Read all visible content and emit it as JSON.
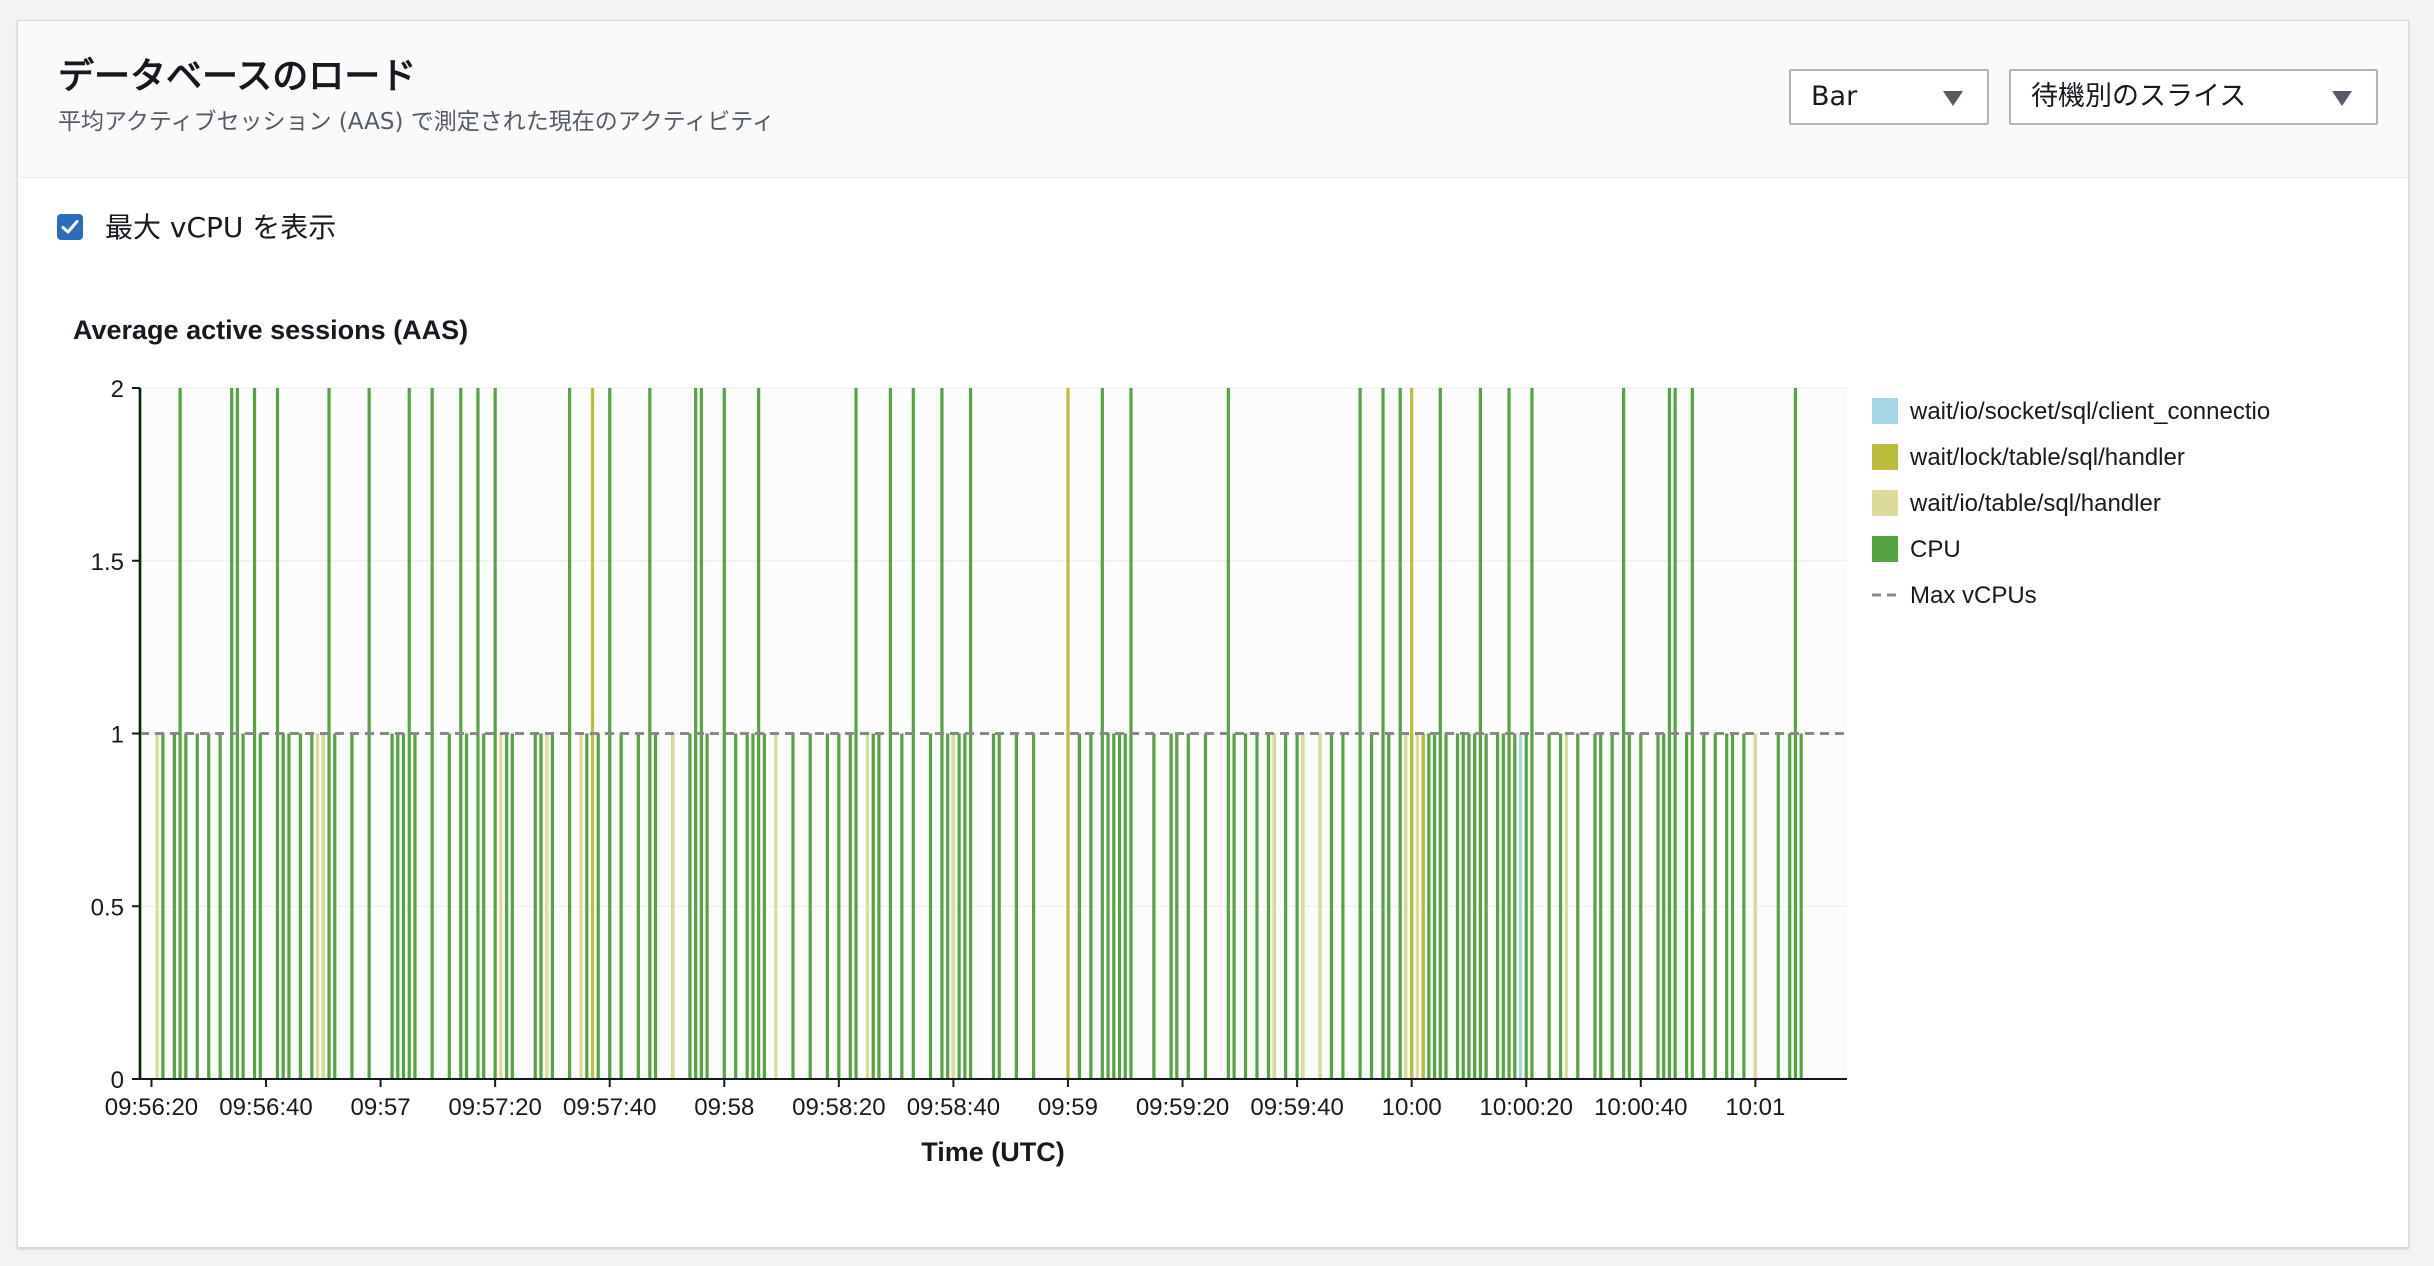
{
  "header": {
    "title": "データベースのロード",
    "subtitle": "平均アクティブセッション (AAS) で測定された現在のアクティビティ"
  },
  "controls": {
    "chart_type": {
      "value": "Bar"
    },
    "slice_by": {
      "value": "待機別のスライス"
    }
  },
  "show_max_vcpu": {
    "label": "最大 vCPU を表示",
    "checked": true
  },
  "colors": {
    "wait_io_socket": "#a6d7e4",
    "wait_lock_table": "#bcbd3c",
    "wait_io_table": "#dcdc98",
    "cpu": "#55a343",
    "max_vcpu": "#888888"
  },
  "chart_data": {
    "type": "bar",
    "title": "Average active sessions (AAS)",
    "xlabel": "Time (UTC)",
    "ylabel": "",
    "ylim": [
      0,
      2
    ],
    "yticks": [
      "0",
      "0.5",
      "1",
      "1.5",
      "2"
    ],
    "xlim": [
      "09:56:18",
      "10:01:16"
    ],
    "xticks": [
      "09:56:20",
      "09:56:40",
      "09:57",
      "09:57:20",
      "09:57:40",
      "09:58",
      "09:58:20",
      "09:58:40",
      "09:59",
      "09:59:20",
      "09:59:40",
      "10:00",
      "10:00:20",
      "10:00:40",
      "10:01"
    ],
    "grid": true,
    "legend_position": "right",
    "legend": [
      {
        "name": "wait/io/socket/sql/client_connectio",
        "key": "wait_io_socket"
      },
      {
        "name": "wait/lock/table/sql/handler",
        "key": "wait_lock_table"
      },
      {
        "name": "wait/io/table/sql/handler",
        "key": "wait_io_table"
      },
      {
        "name": "CPU",
        "key": "cpu"
      },
      {
        "name": "Max vCPUs",
        "key": "max_vcpu",
        "style": "dashed"
      }
    ],
    "max_vcpus": 1,
    "series": [
      {
        "name": "CPU",
        "key": "cpu",
        "points": [
          [
            "09:56:18",
            2
          ],
          [
            "09:56:22",
            1
          ],
          [
            "09:56:24",
            1
          ],
          [
            "09:56:25",
            2
          ],
          [
            "09:56:26",
            1
          ],
          [
            "09:56:28",
            1
          ],
          [
            "09:56:30",
            1
          ],
          [
            "09:56:32",
            1
          ],
          [
            "09:56:34",
            2
          ],
          [
            "09:56:35",
            2
          ],
          [
            "09:56:36",
            1
          ],
          [
            "09:56:38",
            2
          ],
          [
            "09:56:39",
            1
          ],
          [
            "09:56:42",
            2
          ],
          [
            "09:56:43",
            1
          ],
          [
            "09:56:44",
            1
          ],
          [
            "09:56:46",
            1
          ],
          [
            "09:56:48",
            1
          ],
          [
            "09:56:50",
            1
          ],
          [
            "09:56:51",
            2
          ],
          [
            "09:56:52",
            1
          ],
          [
            "09:56:55",
            1
          ],
          [
            "09:56:58",
            2
          ],
          [
            "09:57:02",
            1
          ],
          [
            "09:57:03",
            1
          ],
          [
            "09:57:04",
            1
          ],
          [
            "09:57:05",
            2
          ],
          [
            "09:57:06",
            1
          ],
          [
            "09:57:09",
            2
          ],
          [
            "09:57:12",
            1
          ],
          [
            "09:57:14",
            2
          ],
          [
            "09:57:15",
            1
          ],
          [
            "09:57:17",
            2
          ],
          [
            "09:57:18",
            1
          ],
          [
            "09:57:20",
            2
          ],
          [
            "09:57:22",
            1
          ],
          [
            "09:57:23",
            1
          ],
          [
            "09:57:27",
            1
          ],
          [
            "09:57:28",
            1
          ],
          [
            "09:57:30",
            1
          ],
          [
            "09:57:33",
            2
          ],
          [
            "09:57:36",
            1
          ],
          [
            "09:57:38",
            1
          ],
          [
            "09:57:40",
            2
          ],
          [
            "09:57:42",
            1
          ],
          [
            "09:57:45",
            1
          ],
          [
            "09:57:47",
            2
          ],
          [
            "09:57:48",
            1
          ],
          [
            "09:57:51",
            1
          ],
          [
            "09:57:54",
            1
          ],
          [
            "09:57:55",
            2
          ],
          [
            "09:57:56",
            2
          ],
          [
            "09:57:57",
            1
          ],
          [
            "09:58:00",
            2
          ],
          [
            "09:58:02",
            1
          ],
          [
            "09:58:04",
            1
          ],
          [
            "09:58:05",
            1
          ],
          [
            "09:58:06",
            2
          ],
          [
            "09:58:07",
            1
          ],
          [
            "09:58:12",
            1
          ],
          [
            "09:58:15",
            1
          ],
          [
            "09:58:18",
            1
          ],
          [
            "09:58:20",
            1
          ],
          [
            "09:58:22",
            1
          ],
          [
            "09:58:23",
            2
          ],
          [
            "09:58:26",
            1
          ],
          [
            "09:58:27",
            1
          ],
          [
            "09:58:29",
            2
          ],
          [
            "09:58:31",
            1
          ],
          [
            "09:58:33",
            2
          ],
          [
            "09:58:36",
            1
          ],
          [
            "09:58:38",
            2
          ],
          [
            "09:58:39",
            1
          ],
          [
            "09:58:40",
            1
          ],
          [
            "09:58:41",
            1
          ],
          [
            "09:58:42",
            1
          ],
          [
            "09:58:43",
            2
          ],
          [
            "09:58:47",
            1
          ],
          [
            "09:58:48",
            1
          ],
          [
            "09:58:51",
            1
          ],
          [
            "09:58:54",
            1
          ],
          [
            "09:59:02",
            1
          ],
          [
            "09:59:04",
            1
          ],
          [
            "09:59:06",
            2
          ],
          [
            "09:59:07",
            1
          ],
          [
            "09:59:08",
            1
          ],
          [
            "09:59:09",
            1
          ],
          [
            "09:59:10",
            1
          ],
          [
            "09:59:11",
            2
          ],
          [
            "09:59:15",
            1
          ],
          [
            "09:59:18",
            1
          ],
          [
            "09:59:19",
            1
          ],
          [
            "09:59:21",
            1
          ],
          [
            "09:59:24",
            1
          ],
          [
            "09:59:28",
            2
          ],
          [
            "09:59:29",
            1
          ],
          [
            "09:59:31",
            1
          ],
          [
            "09:59:33",
            1
          ],
          [
            "09:59:35",
            1
          ],
          [
            "09:59:36",
            1
          ],
          [
            "09:59:38",
            1
          ],
          [
            "09:59:40",
            1
          ],
          [
            "09:59:41",
            1
          ],
          [
            "09:59:44",
            1
          ],
          [
            "09:59:46",
            1
          ],
          [
            "09:59:48",
            1
          ],
          [
            "09:59:51",
            2
          ],
          [
            "09:59:53",
            1
          ],
          [
            "09:59:55",
            2
          ],
          [
            "09:59:56",
            1
          ],
          [
            "09:59:58",
            2
          ],
          [
            "09:59:59",
            1
          ],
          [
            "10:00:00",
            1
          ],
          [
            "10:00:02",
            1
          ],
          [
            "10:00:03",
            1
          ],
          [
            "10:00:04",
            1
          ],
          [
            "10:00:05",
            2
          ],
          [
            "10:00:06",
            1
          ],
          [
            "10:00:08",
            1
          ],
          [
            "10:00:09",
            1
          ],
          [
            "10:00:10",
            1
          ],
          [
            "10:00:11",
            1
          ],
          [
            "10:00:12",
            2
          ],
          [
            "10:00:13",
            1
          ],
          [
            "10:00:15",
            1
          ],
          [
            "10:00:16",
            1
          ],
          [
            "10:00:17",
            2
          ],
          [
            "10:00:18",
            1
          ],
          [
            "10:00:20",
            1
          ],
          [
            "10:00:21",
            2
          ],
          [
            "10:00:24",
            1
          ],
          [
            "10:00:26",
            1
          ],
          [
            "10:00:29",
            1
          ],
          [
            "10:00:32",
            1
          ],
          [
            "10:00:33",
            1
          ],
          [
            "10:00:35",
            1
          ],
          [
            "10:00:37",
            2
          ],
          [
            "10:00:38",
            1
          ],
          [
            "10:00:40",
            1
          ],
          [
            "10:00:43",
            1
          ],
          [
            "10:00:44",
            1
          ],
          [
            "10:00:45",
            2
          ],
          [
            "10:00:46",
            2
          ],
          [
            "10:00:48",
            1
          ],
          [
            "10:00:49",
            2
          ],
          [
            "10:00:51",
            1
          ],
          [
            "10:00:53",
            1
          ],
          [
            "10:00:55",
            1
          ],
          [
            "10:00:56",
            1
          ],
          [
            "10:00:58",
            1
          ],
          [
            "10:01:00",
            1
          ],
          [
            "10:01:04",
            1
          ],
          [
            "10:01:06",
            1
          ],
          [
            "10:01:07",
            2
          ],
          [
            "10:01:08",
            1
          ]
        ]
      },
      {
        "name": "wait/io/table/sql/handler",
        "key": "wait_io_table",
        "points": [
          [
            "09:56:21",
            1
          ],
          [
            "09:56:49",
            1
          ],
          [
            "09:56:50",
            1
          ],
          [
            "09:57:21",
            1
          ],
          [
            "09:57:29",
            1
          ],
          [
            "09:57:35",
            1
          ],
          [
            "09:57:51",
            1
          ],
          [
            "09:58:09",
            1
          ],
          [
            "09:58:25",
            1
          ],
          [
            "09:58:40",
            1
          ],
          [
            "09:59:36",
            1
          ],
          [
            "09:59:41",
            1
          ],
          [
            "09:59:44",
            1
          ],
          [
            "09:59:59",
            1
          ],
          [
            "10:00:01",
            1
          ],
          [
            "10:00:27",
            1
          ],
          [
            "10:01:00",
            1
          ]
        ]
      },
      {
        "name": "wait/lock/table/sql/handler",
        "key": "wait_lock_table",
        "points": [
          [
            "09:57:37",
            2
          ],
          [
            "09:59:00",
            2
          ],
          [
            "10:00:00",
            2
          ],
          [
            "10:00:02",
            1
          ]
        ]
      },
      {
        "name": "wait/io/socket/sql/client_connectio",
        "key": "wait_io_socket",
        "points": [
          [
            "10:00:19",
            1
          ]
        ]
      }
    ]
  }
}
